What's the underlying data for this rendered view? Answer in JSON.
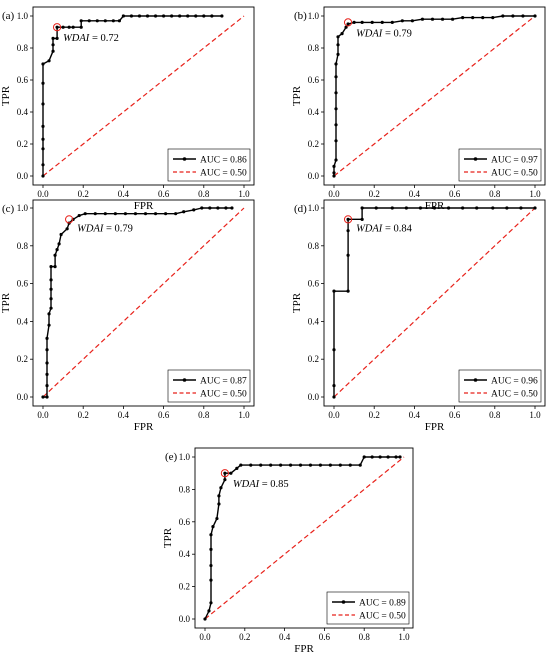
{
  "chart_data": [
    {
      "type": "line",
      "panel": "(a)",
      "xlabel": "FPR",
      "ylabel": "TPR",
      "xlim": [
        0,
        1
      ],
      "ylim": [
        0,
        1
      ],
      "xticks": [
        "0.0",
        "0.2",
        "0.4",
        "0.6",
        "0.8",
        "1.0"
      ],
      "yticks": [
        "0.0",
        "0.2",
        "0.4",
        "0.6",
        "0.8",
        "1.0"
      ],
      "annotation": {
        "prefix": "WDAI",
        "value": " = 0.72",
        "point": [
          0.07,
          0.93
        ]
      },
      "legend_position": "bottom-right",
      "series": [
        {
          "name": "AUC = 0.86",
          "style": "solid-marker",
          "color": "#000000",
          "points": [
            [
              0.0,
              0.0
            ],
            [
              0.0,
              0.07
            ],
            [
              0.0,
              0.17
            ],
            [
              0.0,
              0.23
            ],
            [
              0.0,
              0.31
            ],
            [
              0.0,
              0.45
            ],
            [
              0.0,
              0.58
            ],
            [
              0.0,
              0.7
            ],
            [
              0.03,
              0.72
            ],
            [
              0.05,
              0.78
            ],
            [
              0.05,
              0.82
            ],
            [
              0.05,
              0.86
            ],
            [
              0.07,
              0.86
            ],
            [
              0.07,
              0.93
            ],
            [
              0.1,
              0.93
            ],
            [
              0.13,
              0.93
            ],
            [
              0.15,
              0.93
            ],
            [
              0.19,
              0.93
            ],
            [
              0.19,
              0.97
            ],
            [
              0.23,
              0.97
            ],
            [
              0.27,
              0.97
            ],
            [
              0.31,
              0.97
            ],
            [
              0.35,
              0.97
            ],
            [
              0.38,
              0.97
            ],
            [
              0.4,
              1.0
            ],
            [
              0.44,
              1.0
            ],
            [
              0.48,
              1.0
            ],
            [
              0.52,
              1.0
            ],
            [
              0.56,
              1.0
            ],
            [
              0.6,
              1.0
            ],
            [
              0.64,
              1.0
            ],
            [
              0.68,
              1.0
            ],
            [
              0.72,
              1.0
            ],
            [
              0.76,
              1.0
            ],
            [
              0.8,
              1.0
            ],
            [
              0.84,
              1.0
            ],
            [
              0.89,
              1.0
            ]
          ]
        },
        {
          "name": "AUC = 0.50",
          "style": "dashed",
          "color": "#e8221b",
          "points": [
            [
              0,
              0
            ],
            [
              1,
              1
            ]
          ]
        }
      ]
    },
    {
      "type": "line",
      "panel": "(b)",
      "xlabel": "FPR",
      "ylabel": "TPR",
      "xlim": [
        0,
        1
      ],
      "ylim": [
        0,
        1
      ],
      "xticks": [
        "0.0",
        "0.2",
        "0.4",
        "0.6",
        "0.8",
        "1.0"
      ],
      "yticks": [
        "0.0",
        "0.2",
        "0.4",
        "0.6",
        "0.8",
        "1.0"
      ],
      "annotation": {
        "prefix": "WDAI",
        "value": " = 0.79",
        "point": [
          0.07,
          0.96
        ]
      },
      "legend_position": "bottom-right",
      "series": [
        {
          "name": "AUC = 0.97",
          "style": "solid-marker",
          "color": "#000000",
          "points": [
            [
              0.0,
              0.0
            ],
            [
              0.0,
              0.02
            ],
            [
              0.0,
              0.06
            ],
            [
              0.01,
              0.1
            ],
            [
              0.01,
              0.22
            ],
            [
              0.01,
              0.32
            ],
            [
              0.01,
              0.42
            ],
            [
              0.01,
              0.52
            ],
            [
              0.01,
              0.62
            ],
            [
              0.01,
              0.7
            ],
            [
              0.02,
              0.76
            ],
            [
              0.02,
              0.82
            ],
            [
              0.02,
              0.87
            ],
            [
              0.04,
              0.89
            ],
            [
              0.06,
              0.93
            ],
            [
              0.07,
              0.95
            ],
            [
              0.1,
              0.96
            ],
            [
              0.14,
              0.96
            ],
            [
              0.19,
              0.96
            ],
            [
              0.24,
              0.96
            ],
            [
              0.29,
              0.96
            ],
            [
              0.34,
              0.97
            ],
            [
              0.39,
              0.97
            ],
            [
              0.44,
              0.98
            ],
            [
              0.49,
              0.98
            ],
            [
              0.54,
              0.98
            ],
            [
              0.59,
              0.98
            ],
            [
              0.64,
              0.99
            ],
            [
              0.69,
              0.99
            ],
            [
              0.74,
              0.99
            ],
            [
              0.79,
              0.99
            ],
            [
              0.84,
              1.0
            ],
            [
              0.89,
              1.0
            ],
            [
              0.94,
              1.0
            ],
            [
              1.0,
              1.0
            ]
          ]
        },
        {
          "name": "AUC = 0.50",
          "style": "dashed",
          "color": "#e8221b",
          "points": [
            [
              0,
              0
            ],
            [
              1,
              1
            ]
          ]
        }
      ]
    },
    {
      "type": "line",
      "panel": "(c)",
      "xlabel": "FPR",
      "ylabel": "TPR",
      "xlim": [
        0,
        1
      ],
      "ylim": [
        0,
        1
      ],
      "xticks": [
        "0.0",
        "0.2",
        "0.4",
        "0.6",
        "0.8",
        "1.0"
      ],
      "yticks": [
        "0.0",
        "0.2",
        "0.4",
        "0.6",
        "0.8",
        "1.0"
      ],
      "annotation": {
        "prefix": "WDAI",
        "value": " = 0.79",
        "point": [
          0.13,
          0.94
        ]
      },
      "legend_position": "bottom-right",
      "series": [
        {
          "name": "AUC = 0.87",
          "style": "solid-marker",
          "color": "#000000",
          "points": [
            [
              0.0,
              0.0
            ],
            [
              0.02,
              0.0
            ],
            [
              0.02,
              0.06
            ],
            [
              0.02,
              0.12
            ],
            [
              0.02,
              0.18
            ],
            [
              0.02,
              0.25
            ],
            [
              0.02,
              0.31
            ],
            [
              0.03,
              0.38
            ],
            [
              0.03,
              0.44
            ],
            [
              0.04,
              0.47
            ],
            [
              0.04,
              0.52
            ],
            [
              0.04,
              0.57
            ],
            [
              0.04,
              0.62
            ],
            [
              0.04,
              0.69
            ],
            [
              0.06,
              0.69
            ],
            [
              0.06,
              0.75
            ],
            [
              0.07,
              0.78
            ],
            [
              0.08,
              0.81
            ],
            [
              0.09,
              0.86
            ],
            [
              0.12,
              0.89
            ],
            [
              0.13,
              0.92
            ],
            [
              0.15,
              0.94
            ],
            [
              0.18,
              0.96
            ],
            [
              0.21,
              0.97
            ],
            [
              0.26,
              0.97
            ],
            [
              0.31,
              0.97
            ],
            [
              0.36,
              0.97
            ],
            [
              0.41,
              0.97
            ],
            [
              0.46,
              0.97
            ],
            [
              0.51,
              0.97
            ],
            [
              0.56,
              0.97
            ],
            [
              0.61,
              0.97
            ],
            [
              0.66,
              0.97
            ],
            [
              0.7,
              0.98
            ],
            [
              0.75,
              0.99
            ],
            [
              0.79,
              1.0
            ],
            [
              0.83,
              1.0
            ],
            [
              0.87,
              1.0
            ],
            [
              0.91,
              1.0
            ],
            [
              0.94,
              1.0
            ]
          ]
        },
        {
          "name": "AUC = 0.50",
          "style": "dashed",
          "color": "#e8221b",
          "points": [
            [
              0,
              0
            ],
            [
              1,
              1
            ]
          ]
        }
      ]
    },
    {
      "type": "line",
      "panel": "(d)",
      "xlabel": "FPR",
      "ylabel": "TPR",
      "xlim": [
        0,
        1
      ],
      "ylim": [
        0,
        1
      ],
      "xticks": [
        "0.0",
        "0.2",
        "0.4",
        "0.6",
        "0.8",
        "1.0"
      ],
      "yticks": [
        "0.0",
        "0.2",
        "0.4",
        "0.6",
        "0.8",
        "1.0"
      ],
      "annotation": {
        "prefix": "WDAI",
        "value": " = 0.84",
        "point": [
          0.07,
          0.94
        ]
      },
      "legend_position": "bottom-right",
      "series": [
        {
          "name": "AUC = 0.96",
          "style": "solid-marker",
          "color": "#000000",
          "points": [
            [
              0.0,
              0.0
            ],
            [
              0.0,
              0.06
            ],
            [
              0.0,
              0.25
            ],
            [
              0.0,
              0.56
            ],
            [
              0.07,
              0.56
            ],
            [
              0.07,
              0.75
            ],
            [
              0.07,
              0.88
            ],
            [
              0.07,
              0.94
            ],
            [
              0.14,
              0.94
            ],
            [
              0.14,
              1.0
            ],
            [
              0.21,
              1.0
            ],
            [
              0.29,
              1.0
            ],
            [
              0.36,
              1.0
            ],
            [
              0.43,
              1.0
            ],
            [
              0.5,
              1.0
            ],
            [
              0.57,
              1.0
            ],
            [
              0.64,
              1.0
            ],
            [
              0.71,
              1.0
            ],
            [
              0.79,
              1.0
            ],
            [
              0.86,
              1.0
            ],
            [
              0.93,
              1.0
            ],
            [
              1.0,
              1.0
            ]
          ]
        },
        {
          "name": "AUC = 0.50",
          "style": "dashed",
          "color": "#e8221b",
          "points": [
            [
              0,
              0
            ],
            [
              1,
              1
            ]
          ]
        }
      ]
    },
    {
      "type": "line",
      "panel": "(e)",
      "xlabel": "FPR",
      "ylabel": "TPR",
      "xlim": [
        0,
        1
      ],
      "ylim": [
        0,
        1
      ],
      "xticks": [
        "0.0",
        "0.2",
        "0.4",
        "0.6",
        "0.8",
        "1.0"
      ],
      "yticks": [
        "0.0",
        "0.2",
        "0.4",
        "0.6",
        "0.8",
        "1.0"
      ],
      "annotation": {
        "prefix": "WDAI",
        "value": " = 0.85",
        "point": [
          0.1,
          0.9
        ]
      },
      "legend_position": "bottom-right",
      "series": [
        {
          "name": "AUC = 0.89",
          "style": "solid-marker",
          "color": "#000000",
          "points": [
            [
              0.0,
              0.0
            ],
            [
              0.02,
              0.05
            ],
            [
              0.03,
              0.1
            ],
            [
              0.03,
              0.24
            ],
            [
              0.03,
              0.33
            ],
            [
              0.03,
              0.43
            ],
            [
              0.03,
              0.52
            ],
            [
              0.04,
              0.57
            ],
            [
              0.06,
              0.62
            ],
            [
              0.07,
              0.71
            ],
            [
              0.07,
              0.76
            ],
            [
              0.08,
              0.81
            ],
            [
              0.1,
              0.86
            ],
            [
              0.1,
              0.9
            ],
            [
              0.13,
              0.9
            ],
            [
              0.16,
              0.93
            ],
            [
              0.18,
              0.95
            ],
            [
              0.23,
              0.95
            ],
            [
              0.28,
              0.95
            ],
            [
              0.33,
              0.95
            ],
            [
              0.38,
              0.95
            ],
            [
              0.43,
              0.95
            ],
            [
              0.48,
              0.95
            ],
            [
              0.53,
              0.95
            ],
            [
              0.58,
              0.95
            ],
            [
              0.63,
              0.95
            ],
            [
              0.68,
              0.95
            ],
            [
              0.73,
              0.95
            ],
            [
              0.78,
              0.95
            ],
            [
              0.8,
              1.0
            ],
            [
              0.84,
              1.0
            ],
            [
              0.88,
              1.0
            ],
            [
              0.92,
              1.0
            ],
            [
              0.96,
              1.0
            ],
            [
              0.98,
              1.0
            ]
          ]
        },
        {
          "name": "AUC = 0.50",
          "style": "dashed",
          "color": "#e8221b",
          "points": [
            [
              0,
              0
            ],
            [
              1,
              1
            ]
          ]
        }
      ]
    }
  ]
}
